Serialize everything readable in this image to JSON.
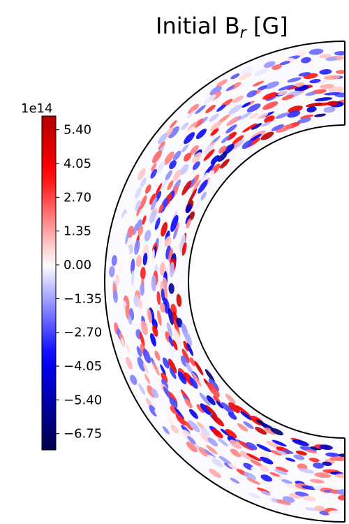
{
  "chart_data": {
    "type": "heatmap",
    "title_main": "Initial B",
    "title_sub": "r",
    "title_units": "[G]",
    "projection": "meridional half-annulus (spherical shell slice)",
    "colormap": "seismic",
    "colorbar": {
      "exponent_label": "1e14",
      "ticks": [
        "5.40",
        "4.05",
        "2.70",
        "1.35",
        "0.00",
        "−1.35",
        "−2.70",
        "−4.05",
        "−5.40",
        "−6.75"
      ],
      "tick_values": [
        5.4,
        4.05,
        2.7,
        1.35,
        0.0,
        -1.35,
        -2.7,
        -4.05,
        -5.4,
        -6.75
      ],
      "range": [
        -7.4,
        5.95
      ]
    },
    "inner_radius_fraction": 0.54
  },
  "colors": {
    "positive_max": "#800000",
    "positive": "#ff0000",
    "zero": "#ffffff",
    "negative": "#0000ff",
    "negative_max": "#00004c"
  }
}
